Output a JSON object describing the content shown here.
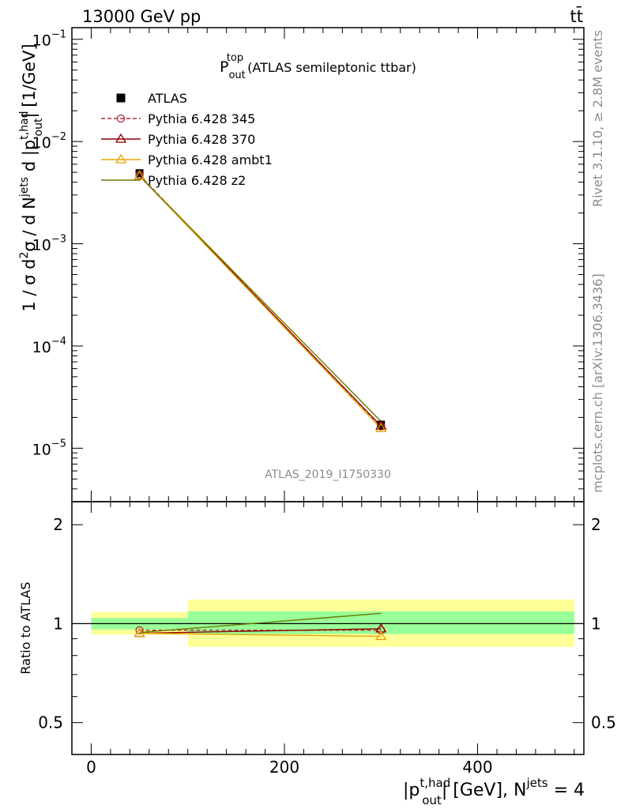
{
  "header": {
    "left": "13000 GeV pp",
    "right": "tt̄"
  },
  "side_labels": {
    "rivet": "Rivet 3.1.10, ≥ 2.8M events",
    "mcplots": "mcplots.cern.ch [arXiv:1306.3436]"
  },
  "watermark": "ATLAS_2019_I1750330",
  "chart_data": [
    {
      "type": "line",
      "title": {
        "main": "P",
        "sup": "top",
        "sub": "out",
        "rest": " (ATLAS semileptonic ttbar)"
      },
      "ylabel": "1 / σ d²σ / d N^jets d |p_out^t,had| [1/GeV]",
      "y_scale": "log",
      "xlim": [
        -20,
        510
      ],
      "ylim": [
        3e-06,
        0.13
      ],
      "yticks": [
        {
          "value": 0.1,
          "base": "10",
          "exp": "−1"
        },
        {
          "value": 0.01,
          "base": "10",
          "exp": "−2"
        },
        {
          "value": 0.001,
          "base": "10",
          "exp": "−3"
        },
        {
          "value": 0.0001,
          "base": "10",
          "exp": "−4"
        },
        {
          "value": 1e-05,
          "base": "10",
          "exp": "−5"
        }
      ],
      "x": [
        50,
        300
      ],
      "series": [
        {
          "name": "ATLAS",
          "values": [
            0.0049,
            1.7e-05
          ],
          "color": "#000000",
          "marker": "square",
          "style": "data"
        },
        {
          "name": "Pythia 6.428 345",
          "values": [
            0.0047,
            1.63e-05
          ],
          "color": "#b22c3c",
          "marker": "circle",
          "style": "dashed"
        },
        {
          "name": "Pythia 6.428 370",
          "values": [
            0.0046,
            1.65e-05
          ],
          "color": "#8b0000",
          "marker": "triangle",
          "style": "solid"
        },
        {
          "name": "Pythia 6.428 ambt1",
          "values": [
            0.0046,
            1.56e-05
          ],
          "color": "#e8a500",
          "marker": "triangle",
          "style": "solid"
        },
        {
          "name": "Pythia 6.428 z2",
          "values": [
            0.0046,
            1.83e-05
          ],
          "color": "#6b7a00",
          "marker": "none",
          "style": "solid"
        }
      ]
    },
    {
      "type": "line",
      "ylabel": "Ratio to ATLAS",
      "y_scale": "log",
      "xlim": [
        -20,
        510
      ],
      "ylim": [
        0.4,
        2.35
      ],
      "yticks": [
        {
          "value": 0.5,
          "label": "0.5"
        },
        {
          "value": 1,
          "label": "1"
        },
        {
          "value": 2,
          "label": "2"
        }
      ],
      "xticks": [
        {
          "value": 0,
          "label": "0"
        },
        {
          "value": 200,
          "label": "200"
        },
        {
          "value": 400,
          "label": "400"
        }
      ],
      "xlabel": {
        "base": "|p",
        "sup": "t,had",
        "sub": "out",
        "rest": "| [GeV], N",
        "sup2": "jets",
        "tail": " = 4"
      },
      "bins": [
        {
          "x_low": 0,
          "x_high": 100,
          "band_stat": [
            0.96,
            1.04
          ],
          "band_total": [
            0.925,
            1.085
          ]
        },
        {
          "x_low": 100,
          "x_high": 500,
          "band_stat": [
            0.93,
            1.09
          ],
          "band_total": [
            0.85,
            1.185
          ]
        }
      ],
      "x": [
        50,
        300
      ],
      "series": [
        {
          "name": "Pythia 6.428 345",
          "values": [
            0.955,
            0.955
          ],
          "color": "#b22c3c",
          "marker": "circle",
          "style": "dashed"
        },
        {
          "name": "Pythia 6.428 370",
          "values": [
            0.935,
            0.965
          ],
          "color": "#8b0000",
          "marker": "triangle",
          "style": "solid"
        },
        {
          "name": "Pythia 6.428 ambt1",
          "values": [
            0.935,
            0.915
          ],
          "color": "#e8a500",
          "marker": "triangle",
          "style": "solid"
        },
        {
          "name": "Pythia 6.428 z2",
          "values": [
            0.94,
            1.075
          ],
          "color": "#6b7a00",
          "marker": "none",
          "style": "solid"
        }
      ]
    }
  ]
}
